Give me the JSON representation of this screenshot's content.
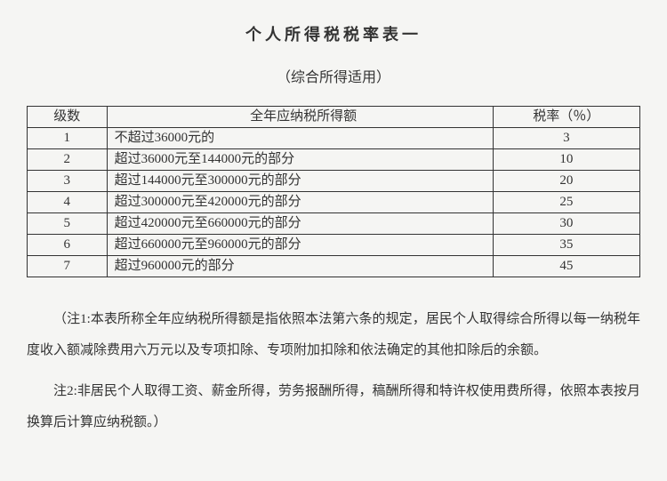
{
  "title": "个人所得税税率表一",
  "subtitle": "（综合所得适用）",
  "table": {
    "columns": [
      "级数",
      "全年应纳税所得额",
      "税率（％）"
    ],
    "column_widths": [
      "13%",
      "63%",
      "24%"
    ],
    "rows": [
      {
        "level": "1",
        "range": "不超过36000元的",
        "rate": "3"
      },
      {
        "level": "2",
        "range": "超过36000元至144000元的部分",
        "rate": "10"
      },
      {
        "level": "3",
        "range": "超过144000元至300000元的部分",
        "rate": "20"
      },
      {
        "level": "4",
        "range": "超过300000元至420000元的部分",
        "rate": "25"
      },
      {
        "level": "5",
        "range": "超过420000元至660000元的部分",
        "rate": "30"
      },
      {
        "level": "6",
        "range": "超过660000元至960000元的部分",
        "rate": "35"
      },
      {
        "level": "7",
        "range": "超过960000元的部分",
        "rate": "45"
      }
    ],
    "border_color": "#333333",
    "font_size": 15
  },
  "notes": [
    "（注1:本表所称全年应纳税所得额是指依照本法第六条的规定，居民个人取得综合所得以每一纳税年度收入额减除费用六万元以及专项扣除、专项附加扣除和依法确定的其他扣除后的余额。",
    "注2:非居民个人取得工资、薪金所得，劳务报酬所得，稿酬所得和特许权使用费所得，依照本表按月换算后计算应纳税额。）"
  ],
  "colors": {
    "background": "#f5f5f3",
    "text": "#333333",
    "border": "#333333"
  },
  "typography": {
    "title_fontsize": 18,
    "subtitle_fontsize": 16,
    "body_fontsize": 15,
    "font_family": "SimSun"
  }
}
